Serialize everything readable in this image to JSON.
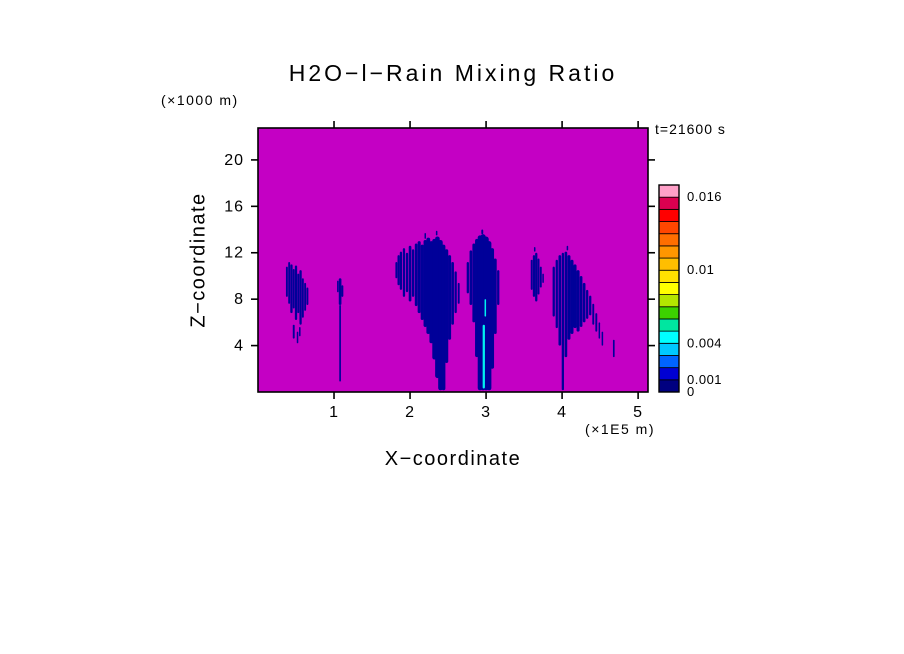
{
  "chart_data": {
    "type": "heatmap",
    "title": "H2O−l−Rain Mixing Ratio",
    "time_label": "t=21600 s",
    "xlabel": "X−coordinate",
    "x_unit": "(×1E5 m)",
    "ylabel": "Z−coordinate",
    "y_unit": "(×1000 m)",
    "x_ticks": [
      1,
      2,
      3,
      4,
      5
    ],
    "z_ticks": [
      4,
      8,
      12,
      16,
      20
    ],
    "x_range": [
      0,
      5.13
    ],
    "z_range": [
      0,
      22.75
    ],
    "grid": false,
    "background_color": "#C400C4",
    "rain_color": "#000099",
    "cyan_core_color": "#00F0F0",
    "frame_color": "#000000",
    "colorbar": {
      "min": 0,
      "max": 0.017,
      "step": 0.001,
      "position": "right",
      "tick_labels": [
        "0.016",
        "0.01",
        "0.004",
        "0.001",
        "0"
      ],
      "tick_values": [
        0.016,
        0.01,
        0.004,
        0.001,
        0
      ],
      "segment_colors_bottom_to_top": [
        "#000080",
        "#0000D2",
        "#0064FF",
        "#00C8FF",
        "#00FFFF",
        "#00E6A0",
        "#3CD200",
        "#B4E600",
        "#FFFF00",
        "#FFE100",
        "#FFBE00",
        "#FF9600",
        "#FF6E00",
        "#FF4600",
        "#FF0000",
        "#DC0050",
        "#FFA0C8"
      ]
    },
    "plumes": [
      {
        "name": "plume-left-wispy",
        "color": "#000099",
        "strokes": [
          [
            0.38,
            8.2,
            10.8,
            0.025
          ],
          [
            0.41,
            7.6,
            11.2,
            0.025
          ],
          [
            0.44,
            6.8,
            11.0,
            0.03
          ],
          [
            0.47,
            7.2,
            10.6,
            0.025
          ],
          [
            0.5,
            6.2,
            10.9,
            0.03
          ],
          [
            0.53,
            6.8,
            10.2,
            0.025
          ],
          [
            0.56,
            5.8,
            10.5,
            0.03
          ],
          [
            0.59,
            6.4,
            9.8,
            0.025
          ],
          [
            0.62,
            7.0,
            9.4,
            0.025
          ],
          [
            0.65,
            7.5,
            9.0,
            0.025
          ],
          [
            0.47,
            4.6,
            5.8,
            0.025
          ],
          [
            0.52,
            4.2,
            5.2,
            0.02
          ],
          [
            0.55,
            4.8,
            5.6,
            0.02
          ]
        ]
      },
      {
        "name": "streak-x1",
        "color": "#000099",
        "strokes": [
          [
            1.08,
            0.9,
            7.5,
            0.022
          ],
          [
            1.08,
            7.5,
            9.8,
            0.035
          ],
          [
            1.11,
            8.2,
            9.2,
            0.025
          ],
          [
            1.05,
            8.6,
            9.6,
            0.02
          ]
        ]
      },
      {
        "name": "plume-big-funnel",
        "color": "#000099",
        "strokes": [
          [
            1.82,
            9.8,
            11.2,
            0.025
          ],
          [
            1.85,
            9.2,
            11.8,
            0.03
          ],
          [
            1.88,
            8.8,
            12.1,
            0.03
          ],
          [
            1.92,
            8.2,
            12.4,
            0.03
          ],
          [
            1.96,
            8.6,
            12.0,
            0.03
          ],
          [
            2.0,
            7.8,
            12.6,
            0.035
          ],
          [
            2.04,
            8.2,
            12.3,
            0.03
          ],
          [
            2.08,
            7.4,
            12.8,
            0.035
          ],
          [
            2.12,
            6.8,
            13.0,
            0.04
          ],
          [
            2.16,
            6.2,
            12.7,
            0.04
          ],
          [
            2.2,
            5.6,
            13.1,
            0.045
          ],
          [
            2.24,
            5.0,
            13.3,
            0.05
          ],
          [
            2.28,
            4.2,
            13.0,
            0.05
          ],
          [
            2.32,
            2.8,
            13.2,
            0.055
          ],
          [
            2.36,
            1.2,
            13.4,
            0.06
          ],
          [
            2.4,
            0.15,
            13.1,
            0.06
          ],
          [
            2.44,
            0.15,
            12.7,
            0.05
          ],
          [
            2.48,
            2.5,
            12.3,
            0.045
          ],
          [
            2.52,
            4.5,
            11.8,
            0.04
          ],
          [
            2.56,
            5.8,
            11.2,
            0.035
          ],
          [
            2.6,
            6.8,
            10.4,
            0.03
          ],
          [
            2.64,
            7.6,
            9.4,
            0.025
          ],
          [
            2.2,
            13.2,
            13.7,
            0.02
          ],
          [
            2.35,
            13.5,
            13.9,
            0.02
          ]
        ]
      },
      {
        "name": "plume-central-column",
        "color": "#000099",
        "strokes": [
          [
            2.76,
            8.5,
            11.2,
            0.03
          ],
          [
            2.8,
            7.5,
            12.2,
            0.035
          ],
          [
            2.84,
            6.0,
            12.8,
            0.04
          ],
          [
            2.88,
            3.0,
            13.2,
            0.05
          ],
          [
            2.92,
            0.15,
            13.5,
            0.06
          ],
          [
            2.96,
            0.15,
            13.6,
            0.07
          ],
          [
            3.0,
            0.15,
            13.4,
            0.07
          ],
          [
            3.04,
            0.15,
            13.0,
            0.06
          ],
          [
            3.08,
            2.0,
            12.4,
            0.05
          ],
          [
            3.12,
            5.0,
            11.5,
            0.04
          ],
          [
            3.16,
            7.5,
            10.5,
            0.03
          ],
          [
            2.95,
            13.6,
            14.0,
            0.025
          ]
        ]
      },
      {
        "name": "cyan-core",
        "color": "#00F0F0",
        "strokes": [
          [
            2.97,
            0.3,
            5.8,
            0.03
          ],
          [
            2.99,
            6.5,
            8.0,
            0.02
          ]
        ]
      },
      {
        "name": "plume-small-right-of-center",
        "color": "#000099",
        "strokes": [
          [
            3.6,
            8.8,
            11.4,
            0.025
          ],
          [
            3.63,
            8.2,
            11.8,
            0.03
          ],
          [
            3.66,
            7.8,
            12.0,
            0.03
          ],
          [
            3.69,
            8.4,
            11.5,
            0.025
          ],
          [
            3.72,
            9.0,
            10.8,
            0.025
          ],
          [
            3.75,
            9.4,
            10.2,
            0.02
          ],
          [
            3.64,
            12.1,
            12.5,
            0.02
          ]
        ]
      },
      {
        "name": "plume-right",
        "color": "#000099",
        "strokes": [
          [
            3.89,
            6.5,
            10.8,
            0.03
          ],
          [
            3.93,
            5.5,
            11.4,
            0.03
          ],
          [
            3.97,
            4.0,
            11.8,
            0.035
          ],
          [
            4.01,
            0.15,
            12.0,
            0.03
          ],
          [
            4.05,
            3.0,
            12.1,
            0.035
          ],
          [
            4.09,
            4.5,
            11.8,
            0.04
          ],
          [
            4.13,
            5.0,
            11.4,
            0.04
          ],
          [
            4.17,
            5.5,
            11.0,
            0.04
          ],
          [
            4.21,
            5.2,
            10.5,
            0.04
          ],
          [
            4.25,
            5.6,
            10.0,
            0.035
          ],
          [
            4.29,
            6.0,
            9.4,
            0.035
          ],
          [
            4.33,
            6.3,
            8.8,
            0.03
          ],
          [
            4.37,
            6.6,
            8.3,
            0.03
          ],
          [
            4.41,
            5.8,
            7.6,
            0.025
          ],
          [
            4.45,
            5.2,
            6.8,
            0.025
          ],
          [
            4.49,
            4.6,
            6.0,
            0.02
          ],
          [
            4.53,
            4.0,
            5.2,
            0.02
          ],
          [
            4.07,
            12.2,
            12.6,
            0.02
          ]
        ]
      },
      {
        "name": "speck-far-right",
        "color": "#000099",
        "strokes": [
          [
            4.68,
            3.0,
            4.5,
            0.022
          ]
        ]
      }
    ]
  }
}
